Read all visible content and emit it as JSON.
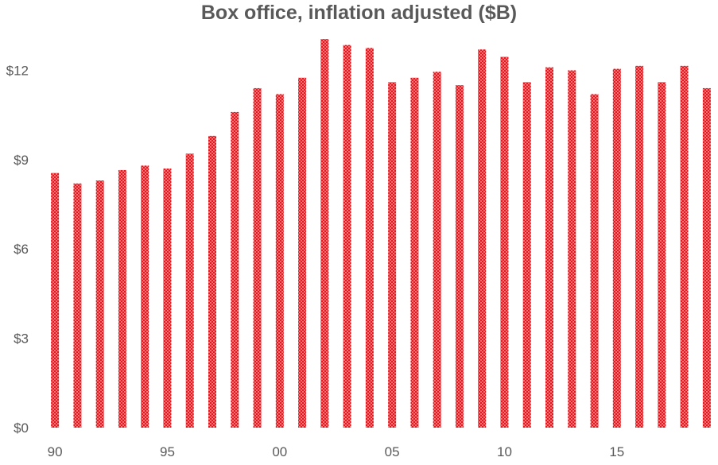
{
  "chart_data": {
    "type": "bar",
    "title": "Box office, inflation adjusted ($B)",
    "xlabel": "",
    "ylabel": "",
    "categories": [
      "90",
      "91",
      "92",
      "93",
      "94",
      "95",
      "96",
      "97",
      "98",
      "99",
      "00",
      "01",
      "02",
      "03",
      "04",
      "05",
      "06",
      "07",
      "08",
      "09",
      "10",
      "11",
      "12",
      "13",
      "14",
      "15",
      "16",
      "17",
      "18",
      "19"
    ],
    "x_tick_labels": [
      "90",
      "95",
      "00",
      "05",
      "10",
      "15"
    ],
    "y_tick_values": [
      0,
      3,
      6,
      9,
      12
    ],
    "y_tick_labels": [
      "$0",
      "$3",
      "$6",
      "$9",
      "$12"
    ],
    "ylim": [
      0,
      13.4
    ],
    "grid": false,
    "legend": "none",
    "bar_color": "#e8161c",
    "bar_pattern": "dotted",
    "series": [
      {
        "values": [
          8.55,
          8.2,
          8.3,
          8.65,
          8.8,
          8.7,
          9.2,
          9.8,
          10.6,
          11.4,
          11.2,
          11.75,
          13.05,
          12.85,
          12.75,
          11.6,
          11.75,
          11.95,
          11.5,
          12.7,
          12.45,
          11.6,
          12.1,
          12.0,
          11.2,
          12.05,
          12.15,
          11.6,
          12.15,
          11.4
        ]
      }
    ]
  }
}
